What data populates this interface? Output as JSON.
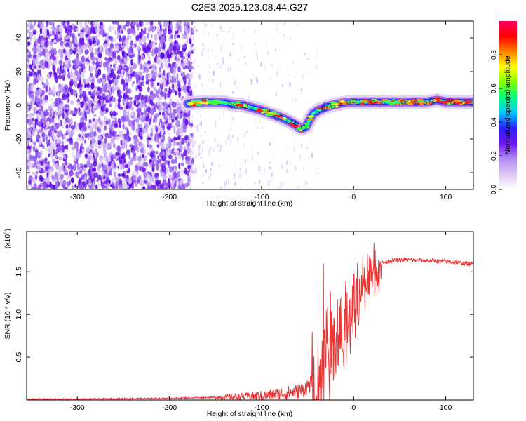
{
  "title": "C2E3.2025.123.08.44.G27",
  "chart_data": [
    {
      "type": "heatmap",
      "title": "C2E3.2025.123.08.44.G27",
      "xlabel": "Height of straight line (km)",
      "ylabel": "Frequency (Hz)",
      "xlim": [
        -355,
        130
      ],
      "ylim": [
        -50,
        50
      ],
      "xticks": [
        -300,
        -200,
        -100,
        0,
        100
      ],
      "yticks": [
        -40,
        -20,
        0,
        20,
        40
      ],
      "grid": false,
      "trace": {
        "x": [
          -180,
          -170,
          -160,
          -150,
          -140,
          -130,
          -120,
          -110,
          -100,
          -90,
          -80,
          -70,
          -62,
          -57,
          -52,
          -48,
          -44,
          -38,
          -30,
          -20,
          -10,
          0,
          10,
          20,
          40,
          60,
          80,
          90,
          100,
          110,
          120,
          130
        ],
        "freq": [
          1,
          1.5,
          2,
          2,
          1.5,
          0.5,
          0,
          -1.5,
          -3,
          -5,
          -7,
          -9.5,
          -12,
          -14,
          -13,
          -9,
          -5,
          -3,
          -1,
          0.5,
          1.5,
          2,
          2,
          2,
          2,
          2,
          2,
          3,
          2,
          2,
          2,
          2
        ]
      },
      "colorbar": {
        "label": "Normalized spectral amplitude",
        "ticks": [
          0.0,
          0.2,
          0.4,
          0.6,
          0.8
        ],
        "range": [
          0,
          1
        ],
        "colors": [
          "#ffffff",
          "#dcc8f5",
          "#b28cf0",
          "#6e14f0",
          "#2a20ff",
          "#00c8ff",
          "#00ff80",
          "#80ff00",
          "#ffff00",
          "#ff8000",
          "#ff0000",
          "#ff0060"
        ]
      }
    },
    {
      "type": "line",
      "xlabel": "Height of straight line (km)",
      "ylabel": "SNR (10 * v/v)",
      "y_multiplier": "(x10",
      "y_exponent": "4",
      "xlim": [
        -355,
        130
      ],
      "ylim": [
        0,
        1.97
      ],
      "xticks": [
        -300,
        -200,
        -100,
        0,
        100
      ],
      "yticks": [
        0.5,
        1.0,
        1.5
      ],
      "ytick_labels": [
        "0.5",
        "1.0",
        "1.5"
      ],
      "color": "#ee3333",
      "grid": false,
      "x": [
        -355,
        -300,
        -200,
        -160,
        -120,
        -100,
        -80,
        -65,
        -55,
        -45,
        -40,
        -35,
        -32,
        -30,
        -28,
        -25,
        -20,
        -15,
        -10,
        -5,
        0,
        5,
        10,
        20,
        30,
        40,
        60,
        80,
        100,
        110,
        120,
        130
      ],
      "y": [
        0.01,
        0.01,
        0.02,
        0.03,
        0.04,
        0.05,
        0.07,
        0.09,
        0.12,
        0.2,
        0.3,
        0.55,
        0.9,
        1.2,
        0.8,
        0.7,
        0.9,
        0.95,
        1.0,
        1.05,
        1.15,
        1.3,
        1.45,
        1.55,
        1.6,
        1.63,
        1.64,
        1.63,
        1.62,
        1.61,
        1.6,
        1.59
      ]
    }
  ]
}
